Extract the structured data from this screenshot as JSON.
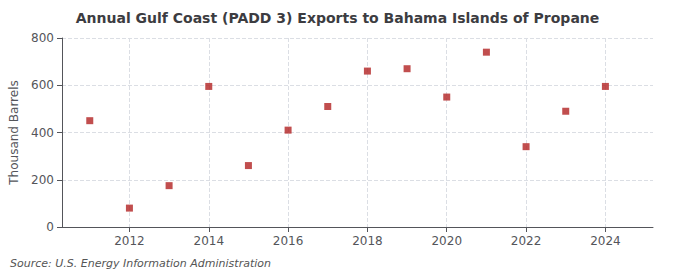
{
  "chart_data": {
    "type": "scatter",
    "title": "Annual Gulf Coast (PADD 3) Exports to Bahama Islands of Propane",
    "ylabel": "Thousand Barrels",
    "source": "Source: U.S. Energy Information Administration",
    "x": [
      2011,
      2012,
      2013,
      2014,
      2015,
      2016,
      2017,
      2018,
      2019,
      2020,
      2021,
      2022,
      2023,
      2024
    ],
    "values": [
      450,
      80,
      175,
      595,
      260,
      410,
      510,
      660,
      670,
      550,
      740,
      340,
      490,
      595
    ],
    "color": "#b22222",
    "marker": "square",
    "xlim": [
      2010.3,
      2025.2
    ],
    "ylim": [
      0,
      800
    ],
    "xticks": [
      2012,
      2014,
      2016,
      2018,
      2020,
      2022,
      2024
    ],
    "yticks": [
      0,
      200,
      400,
      600,
      800
    ],
    "grid": true
  }
}
